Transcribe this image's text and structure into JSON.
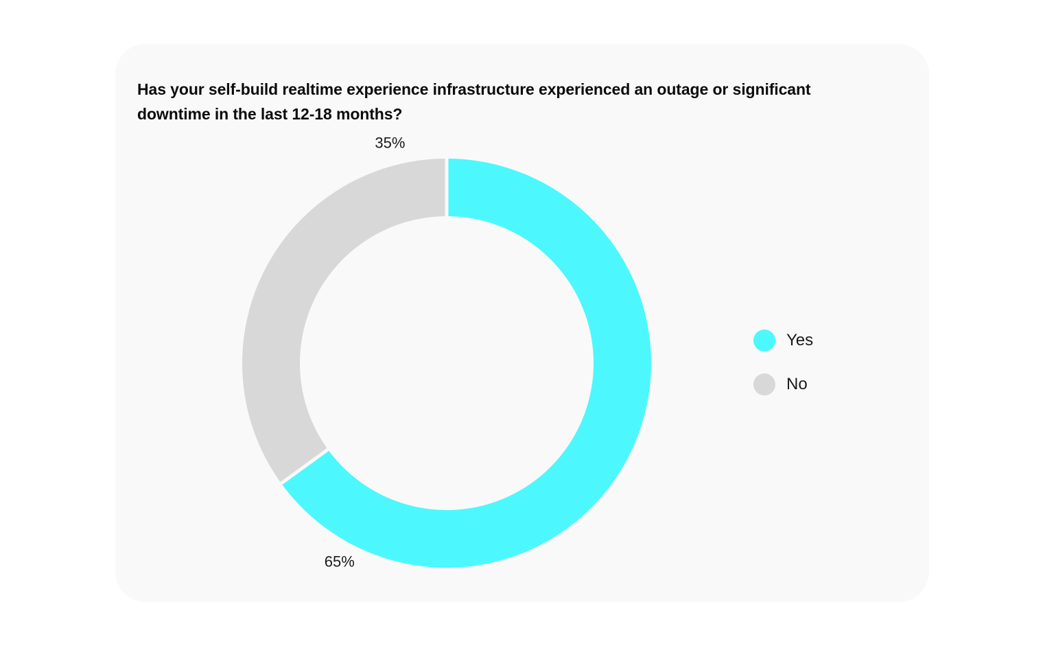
{
  "chart_data": {
    "type": "pie",
    "style": "donut",
    "title": "Has your self-build realtime experience infrastructure experienced an outage or significant downtime in the last 12-18 months?",
    "categories": [
      "Yes",
      "No"
    ],
    "values": [
      65,
      35
    ],
    "value_labels": [
      "65%",
      "35%"
    ],
    "colors": [
      "#4cf8fd",
      "#d8d8d8"
    ],
    "start_angle": "12 o'clock",
    "direction": "clockwise",
    "legend_placement": "right"
  }
}
